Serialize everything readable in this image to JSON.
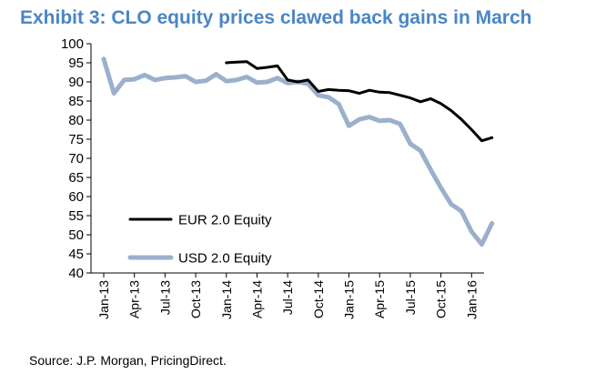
{
  "title": "Exhibit 3: CLO equity prices clawed back gains in March",
  "source": "Source: J.P. Morgan, PricingDirect.",
  "colors": {
    "title": "#4a86c5",
    "eur": "#000000",
    "usd": "#9ab0cc"
  },
  "chart_data": {
    "type": "line",
    "title": "Exhibit 3: CLO equity prices clawed back gains in March",
    "xlabel": "",
    "ylabel": "",
    "ylim": [
      40,
      100
    ],
    "yticks": [
      40,
      45,
      50,
      55,
      60,
      65,
      70,
      75,
      80,
      85,
      90,
      95,
      100
    ],
    "x_tick_labels": [
      "Jan-13",
      "Apr-13",
      "Jul-13",
      "Oct-13",
      "Jan-14",
      "Apr-14",
      "Jul-14",
      "Oct-14",
      "Jan-15",
      "Apr-15",
      "Jul-15",
      "Oct-15",
      "Jan-16"
    ],
    "x": [
      "Jan-13",
      "Feb-13",
      "Mar-13",
      "Apr-13",
      "May-13",
      "Jun-13",
      "Jul-13",
      "Aug-13",
      "Sep-13",
      "Oct-13",
      "Nov-13",
      "Dec-13",
      "Jan-14",
      "Feb-14",
      "Mar-14",
      "Apr-14",
      "May-14",
      "Jun-14",
      "Jul-14",
      "Aug-14",
      "Sep-14",
      "Oct-14",
      "Nov-14",
      "Dec-14",
      "Jan-15",
      "Feb-15",
      "Mar-15",
      "Apr-15",
      "May-15",
      "Jun-15",
      "Jul-15",
      "Aug-15",
      "Sep-15",
      "Oct-15",
      "Nov-15",
      "Dec-15",
      "Jan-16",
      "Feb-16",
      "Mar-16"
    ],
    "legend_position": "lower-left",
    "grid": false,
    "series": [
      {
        "name": "EUR 2.0 Equity",
        "color": "#000000",
        "values": [
          null,
          null,
          null,
          null,
          null,
          null,
          null,
          null,
          null,
          null,
          null,
          null,
          95,
          95.2,
          95.3,
          93.5,
          93.8,
          94.2,
          90.5,
          90,
          90.5,
          87.5,
          88,
          87.8,
          87.7,
          87,
          87.8,
          87.3,
          87.2,
          86.5,
          85.8,
          84.8,
          85.6,
          84.3,
          82.5,
          80.2,
          77.5,
          74.6,
          75.4
        ]
      },
      {
        "name": "USD 2.0 Equity",
        "color": "#9ab0cc",
        "values": [
          96,
          87,
          90.5,
          90.7,
          91.8,
          90.5,
          91,
          91.2,
          91.5,
          90,
          90.3,
          92,
          90.2,
          90.5,
          91.3,
          89.8,
          90,
          91,
          89.7,
          90,
          89.5,
          86.5,
          86,
          84.2,
          78.5,
          80.2,
          80.8,
          79.8,
          80,
          79,
          73.8,
          72,
          67,
          62.3,
          58,
          56.2,
          50.8,
          47.5,
          53
        ]
      }
    ]
  }
}
